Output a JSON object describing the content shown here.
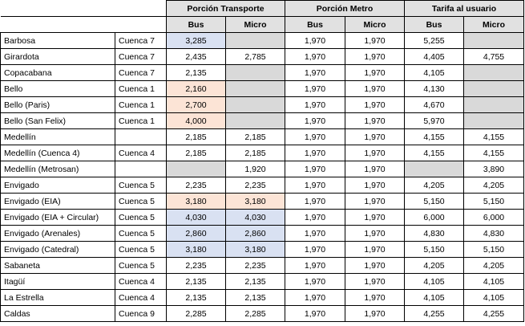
{
  "header": {
    "groups": [
      "Porción Transporte",
      "Porción Metro",
      "Tarifa al usuario"
    ],
    "subcols": [
      "Bus",
      "Micro",
      "Bus",
      "Micro",
      "Bus",
      "Micro"
    ]
  },
  "rows": [
    {
      "name": "Barbosa",
      "cuenca": "Cuenca 7",
      "vals": [
        "3,285",
        "",
        "1,970",
        "1,970",
        "5,255",
        ""
      ],
      "fills": [
        "blue",
        "grey",
        "",
        "",
        "",
        "grey"
      ]
    },
    {
      "name": "Girardota",
      "cuenca": "Cuenca 7",
      "vals": [
        "2,435",
        "2,785",
        "1,970",
        "1,970",
        "4,405",
        "4,755"
      ],
      "fills": [
        "",
        "",
        "",
        "",
        "",
        ""
      ]
    },
    {
      "name": "Copacabana",
      "cuenca": "Cuenca 7",
      "vals": [
        "2,135",
        "",
        "1,970",
        "1,970",
        "4,105",
        ""
      ],
      "fills": [
        "",
        "grey",
        "",
        "",
        "",
        "grey"
      ]
    },
    {
      "name": "Bello",
      "cuenca": "Cuenca 1",
      "vals": [
        "2,160",
        "",
        "1,970",
        "1,970",
        "4,130",
        ""
      ],
      "fills": [
        "orange",
        "grey",
        "",
        "",
        "",
        "grey"
      ]
    },
    {
      "name": "Bello (Paris)",
      "cuenca": "Cuenca 1",
      "vals": [
        "2,700",
        "",
        "1,970",
        "1,970",
        "4,670",
        ""
      ],
      "fills": [
        "orange",
        "grey",
        "",
        "",
        "",
        "grey"
      ]
    },
    {
      "name": "Bello (San Felix)",
      "cuenca": "Cuenca 1",
      "vals": [
        "4,000",
        "",
        "1,970",
        "1,970",
        "5,970",
        ""
      ],
      "fills": [
        "orange",
        "grey",
        "",
        "",
        "",
        "grey"
      ]
    },
    {
      "name": "Medellín",
      "cuenca": "",
      "vals": [
        "2,185",
        "2,185",
        "1,970",
        "1,970",
        "4,155",
        "4,155"
      ],
      "fills": [
        "",
        "",
        "",
        "",
        "",
        ""
      ]
    },
    {
      "name": "Medellín (Cuenca 4)",
      "cuenca": "Cuenca 4",
      "vals": [
        "2,185",
        "2,185",
        "1,970",
        "1,970",
        "4,155",
        "4,155"
      ],
      "fills": [
        "",
        "",
        "",
        "",
        "",
        ""
      ]
    },
    {
      "name": "Medellín (Metrosan)",
      "cuenca": "",
      "vals": [
        "",
        "1,920",
        "1,970",
        "1,970",
        "",
        "3,890"
      ],
      "fills": [
        "grey",
        "",
        "",
        "",
        "grey",
        ""
      ]
    },
    {
      "name": "Envigado",
      "cuenca": "Cuenca 5",
      "vals": [
        "2,235",
        "2,235",
        "1,970",
        "1,970",
        "4,205",
        "4,205"
      ],
      "fills": [
        "",
        "",
        "",
        "",
        "",
        ""
      ]
    },
    {
      "name": "Envigado (EIA)",
      "cuenca": "Cuenca 5",
      "vals": [
        "3,180",
        "3,180",
        "1,970",
        "1,970",
        "5,150",
        "5,150"
      ],
      "fills": [
        "orange",
        "orange",
        "",
        "",
        "",
        ""
      ]
    },
    {
      "name": "Envigado (EIA + Circular)",
      "cuenca": "Cuenca 5",
      "vals": [
        "4,030",
        "4,030",
        "1,970",
        "1,970",
        "6,000",
        "6,000"
      ],
      "fills": [
        "blue",
        "blue",
        "",
        "",
        "",
        ""
      ]
    },
    {
      "name": "Envigado (Arenales)",
      "cuenca": "Cuenca 5",
      "vals": [
        "2,860",
        "2,860",
        "1,970",
        "1,970",
        "4,830",
        "4,830"
      ],
      "fills": [
        "blue",
        "blue",
        "",
        "",
        "",
        ""
      ]
    },
    {
      "name": "Envigado (Catedral)",
      "cuenca": "Cuenca 5",
      "vals": [
        "3,180",
        "3,180",
        "1,970",
        "1,970",
        "5,150",
        "5,150"
      ],
      "fills": [
        "blue",
        "blue",
        "",
        "",
        "",
        ""
      ]
    },
    {
      "name": "Sabaneta",
      "cuenca": "Cuenca 5",
      "vals": [
        "2,235",
        "2,235",
        "1,970",
        "1,970",
        "4,205",
        "4,205"
      ],
      "fills": [
        "",
        "",
        "",
        "",
        "",
        ""
      ]
    },
    {
      "name": "Itagüí",
      "cuenca": "Cuenca 4",
      "vals": [
        "2,135",
        "2,135",
        "1,970",
        "1,970",
        "4,105",
        "4,105"
      ],
      "fills": [
        "",
        "",
        "",
        "",
        "",
        ""
      ]
    },
    {
      "name": "La Estrella",
      "cuenca": "Cuenca 4",
      "vals": [
        "2,135",
        "2,135",
        "1,970",
        "1,970",
        "4,105",
        "4,105"
      ],
      "fills": [
        "",
        "",
        "",
        "",
        "",
        ""
      ]
    },
    {
      "name": "Caldas",
      "cuenca": "Cuenca 9",
      "vals": [
        "2,285",
        "2,285",
        "1,970",
        "1,970",
        "4,255",
        "4,255"
      ],
      "fills": [
        "",
        "",
        "",
        "",
        "",
        ""
      ]
    }
  ],
  "colors": {
    "grey": "#d9d9d9",
    "orange": "#fce4d6",
    "blue": "#d9e1f2",
    "header": "#e1e1e1"
  }
}
